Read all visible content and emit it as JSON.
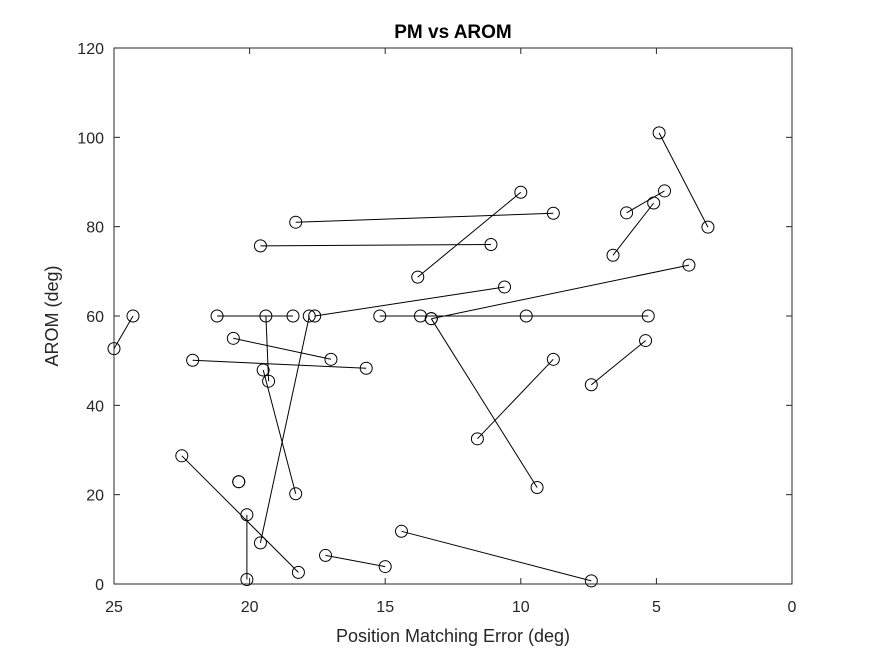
{
  "chart_data": {
    "type": "scatter",
    "title": "PM vs AROM",
    "xlabel": "Position Matching Error (deg)",
    "ylabel": "AROM (deg)",
    "xlim": [
      0,
      25
    ],
    "ylim": [
      0,
      120
    ],
    "x_reversed": true,
    "x_ticks": [
      25,
      20,
      15,
      10,
      5,
      0
    ],
    "y_ticks": [
      0,
      20,
      40,
      60,
      80,
      100,
      120
    ],
    "grid": false,
    "legend": "none",
    "marker": "open-circle",
    "line_color": "#000000",
    "series": [
      {
        "x": [
          25.0,
          24.3
        ],
        "y": [
          52.7,
          60.0
        ]
      },
      {
        "x": [
          18.3,
          8.8
        ],
        "y": [
          81.0,
          83.0
        ]
      },
      {
        "x": [
          19.6,
          11.1
        ],
        "y": [
          75.7,
          76.0
        ]
      },
      {
        "x": [
          13.8,
          10.0
        ],
        "y": [
          68.7,
          87.7
        ]
      },
      {
        "x": [
          6.6,
          5.1
        ],
        "y": [
          73.6,
          85.3
        ]
      },
      {
        "x": [
          6.1,
          4.7
        ],
        "y": [
          83.1,
          88.0
        ]
      },
      {
        "x": [
          4.9,
          3.1
        ],
        "y": [
          101.0,
          79.9
        ]
      },
      {
        "x": [
          13.3,
          3.8
        ],
        "y": [
          59.4,
          71.4
        ]
      },
      {
        "x": [
          17.6,
          10.6
        ],
        "y": [
          60.0,
          66.5
        ]
      },
      {
        "x": [
          21.2,
          18.4
        ],
        "y": [
          60.0,
          60.0
        ]
      },
      {
        "x": [
          15.2,
          9.8
        ],
        "y": [
          60.0,
          60.0
        ]
      },
      {
        "x": [
          13.7,
          5.3
        ],
        "y": [
          60.0,
          60.0
        ]
      },
      {
        "x": [
          20.6,
          17.0
        ],
        "y": [
          55.0,
          50.3
        ]
      },
      {
        "x": [
          22.1,
          15.7
        ],
        "y": [
          50.1,
          48.3
        ]
      },
      {
        "x": [
          19.4,
          19.3
        ],
        "y": [
          60.0,
          45.4
        ]
      },
      {
        "x": [
          19.5,
          18.3
        ],
        "y": [
          47.9,
          20.2
        ]
      },
      {
        "x": [
          19.6,
          17.8
        ],
        "y": [
          9.2,
          60.0
        ]
      },
      {
        "x": [
          13.3,
          9.4
        ],
        "y": [
          59.4,
          21.6
        ]
      },
      {
        "x": [
          11.6,
          8.8
        ],
        "y": [
          32.5,
          50.3
        ]
      },
      {
        "x": [
          7.4,
          5.4
        ],
        "y": [
          44.6,
          54.5
        ]
      },
      {
        "x": [
          22.5,
          18.2
        ],
        "y": [
          28.7,
          2.6
        ]
      },
      {
        "x": [
          20.4,
          20.4
        ],
        "y": [
          22.9,
          22.9
        ]
      },
      {
        "x": [
          20.1,
          20.1
        ],
        "y": [
          15.5,
          1.0
        ]
      },
      {
        "x": [
          17.2,
          15.0
        ],
        "y": [
          6.4,
          3.9
        ]
      },
      {
        "x": [
          14.4,
          7.4
        ],
        "y": [
          11.8,
          0.7
        ]
      }
    ]
  }
}
